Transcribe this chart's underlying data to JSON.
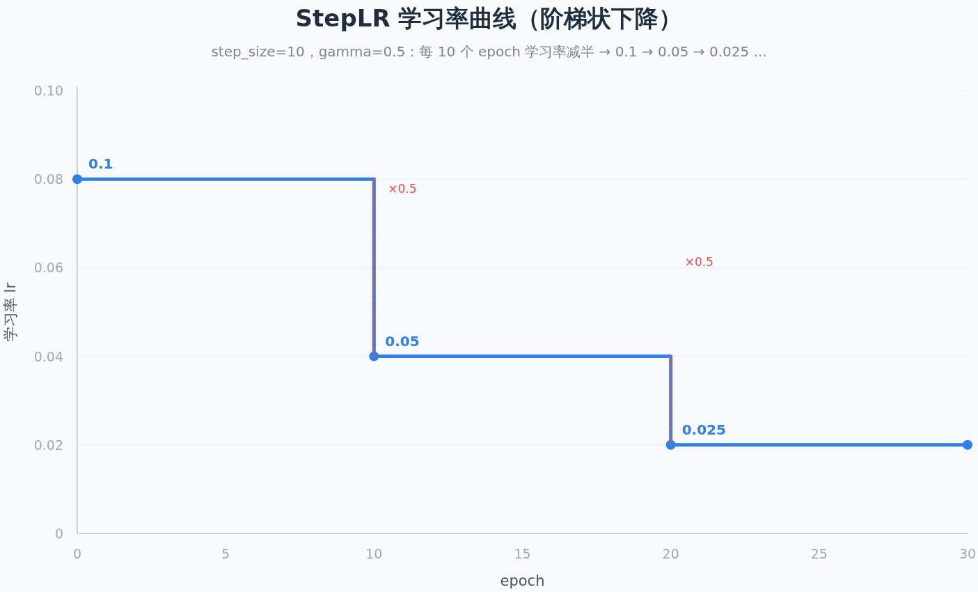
{
  "chart_data": {
    "type": "step",
    "title": "StepLR 学习率曲线（阶梯状下降）",
    "subtitle": "step_size=10，gamma=0.5：每 10 个 epoch 学习率减半 → 0.1 → 0.05 → 0.025 ...",
    "xlabel": "epoch",
    "ylabel": "学习率 lr",
    "xlim": [
      0,
      30
    ],
    "xticks": [
      0,
      5,
      10,
      15,
      20,
      25,
      30
    ],
    "ylim": [
      0,
      0.1
    ],
    "yticks": [
      {
        "value": 0,
        "label": "0"
      },
      {
        "value": 0.02,
        "label": "0.02"
      },
      {
        "value": 0.04,
        "label": "0.04"
      },
      {
        "value": 0.06,
        "label": "0.06"
      },
      {
        "value": 0.08,
        "label": "0.08"
      },
      {
        "value": 0.1,
        "label": "0.10"
      }
    ],
    "grid": "y",
    "marker": "circle",
    "series": [
      {
        "color": "#2f80ed",
        "x": [
          0,
          10,
          20,
          30
        ],
        "values": [
          0.08,
          0.04,
          0.02,
          0.02
        ]
      },
      {
        "type": "line",
        "color": "#e05252",
        "line_style": "dashed",
        "marker": "none",
        "x": [
          10,
          10
        ],
        "values": [
          0.08,
          0.04
        ]
      },
      {
        "type": "line",
        "color": "#e05252",
        "line_style": "dashed",
        "marker": "none",
        "x": [
          20,
          20
        ],
        "values": [
          0.04,
          0.02
        ]
      }
    ],
    "annotations": [
      {
        "text": "0.1",
        "x": 0,
        "y": 0.08
      },
      {
        "text": "0.05",
        "x": 10,
        "y": 0.04
      },
      {
        "text": "0.025",
        "x": 20,
        "y": 0.02
      },
      "×0.5",
      "×0.5"
    ]
  }
}
